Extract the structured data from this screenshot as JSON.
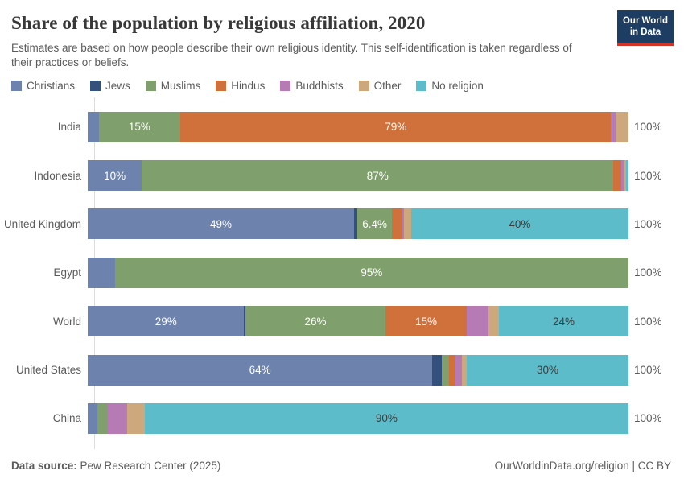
{
  "header": {
    "title": "Share of the population by religious affiliation, 2020",
    "subtitle": "Estimates are based on how people describe their own religious identity. This self-identification is taken regardless of their practices or beliefs.",
    "logo": {
      "line1": "Our World",
      "line2": "in Data"
    }
  },
  "brand_colors": {
    "logo_navy": "#1d3d63",
    "logo_red": "#d13327"
  },
  "chart_data": {
    "type": "bar",
    "orientation": "horizontal",
    "stacked": true,
    "unit": "%",
    "x_range": [
      0,
      100
    ],
    "grid": false,
    "legend_position": "top",
    "categories": [
      "Christians",
      "Jews",
      "Muslims",
      "Hindus",
      "Buddhists",
      "Other",
      "No religion"
    ],
    "series_colors": {
      "Christians": "#6d83ae",
      "Jews": "#34517d",
      "Muslims": "#7f9f6c",
      "Hindus": "#d0713c",
      "Buddhists": "#b67ab4",
      "Other": "#cda87c",
      "No religion": "#5dbcc9"
    },
    "label_colors": {
      "on_segment_light_text": "#ffffff",
      "on_segment_dark_text": "#3d3d3d"
    },
    "dark_text_series": [
      "No religion"
    ],
    "row_total_label": "100%",
    "rows": [
      {
        "label": "India",
        "segments": [
          {
            "series": "Christians",
            "value": 2.0,
            "label": ""
          },
          {
            "series": "Muslims",
            "value": 15.0,
            "label": "15%"
          },
          {
            "series": "Hindus",
            "value": 79.0,
            "label": "79%"
          },
          {
            "series": "Buddhists",
            "value": 0.8,
            "label": ""
          },
          {
            "series": "Other",
            "value": 2.4,
            "label": ""
          }
        ]
      },
      {
        "label": "Indonesia",
        "segments": [
          {
            "series": "Christians",
            "value": 10.0,
            "label": "10%"
          },
          {
            "series": "Muslims",
            "value": 87.0,
            "label": "87%"
          },
          {
            "series": "Hindus",
            "value": 1.5,
            "label": ""
          },
          {
            "series": "Buddhists",
            "value": 0.6,
            "label": ""
          },
          {
            "series": "Other",
            "value": 0.3,
            "label": ""
          },
          {
            "series": "No religion",
            "value": 0.4,
            "label": ""
          }
        ]
      },
      {
        "label": "United Kingdom",
        "segments": [
          {
            "series": "Christians",
            "value": 49.0,
            "label": "49%"
          },
          {
            "series": "Jews",
            "value": 0.6,
            "label": ""
          },
          {
            "series": "Muslims",
            "value": 6.4,
            "label": "6.4%"
          },
          {
            "series": "Hindus",
            "value": 1.8,
            "label": ""
          },
          {
            "series": "Buddhists",
            "value": 0.4,
            "label": ""
          },
          {
            "series": "Other",
            "value": 1.3,
            "label": ""
          },
          {
            "series": "No religion",
            "value": 40.0,
            "label": "40%"
          }
        ]
      },
      {
        "label": "Egypt",
        "segments": [
          {
            "series": "Christians",
            "value": 5.0,
            "label": ""
          },
          {
            "series": "Muslims",
            "value": 95.0,
            "label": "95%"
          }
        ]
      },
      {
        "label": "World",
        "segments": [
          {
            "series": "Christians",
            "value": 29.0,
            "label": "29%"
          },
          {
            "series": "Jews",
            "value": 0.2,
            "label": ""
          },
          {
            "series": "Muslims",
            "value": 26.0,
            "label": "26%"
          },
          {
            "series": "Hindus",
            "value": 15.0,
            "label": "15%"
          },
          {
            "series": "Buddhists",
            "value": 4.0,
            "label": ""
          },
          {
            "series": "Other",
            "value": 2.0,
            "label": ""
          },
          {
            "series": "No religion",
            "value": 24.0,
            "label": "24%"
          }
        ]
      },
      {
        "label": "United States",
        "segments": [
          {
            "series": "Christians",
            "value": 64.0,
            "label": "64%"
          },
          {
            "series": "Jews",
            "value": 1.8,
            "label": ""
          },
          {
            "series": "Muslims",
            "value": 1.3,
            "label": ""
          },
          {
            "series": "Hindus",
            "value": 1.0,
            "label": ""
          },
          {
            "series": "Buddhists",
            "value": 1.4,
            "label": ""
          },
          {
            "series": "Other",
            "value": 0.9,
            "label": ""
          },
          {
            "series": "No religion",
            "value": 30.0,
            "label": "30%"
          }
        ]
      },
      {
        "label": "China",
        "segments": [
          {
            "series": "Christians",
            "value": 1.8,
            "label": ""
          },
          {
            "series": "Muslims",
            "value": 2.0,
            "label": ""
          },
          {
            "series": "Buddhists",
            "value": 3.6,
            "label": ""
          },
          {
            "series": "Other",
            "value": 3.2,
            "label": ""
          },
          {
            "series": "No religion",
            "value": 90.0,
            "label": "90%"
          }
        ]
      }
    ]
  },
  "footer": {
    "source_label": "Data source:",
    "source_value": "Pew Research Center (2025)",
    "credit": "OurWorldinData.org/religion | CC BY"
  }
}
